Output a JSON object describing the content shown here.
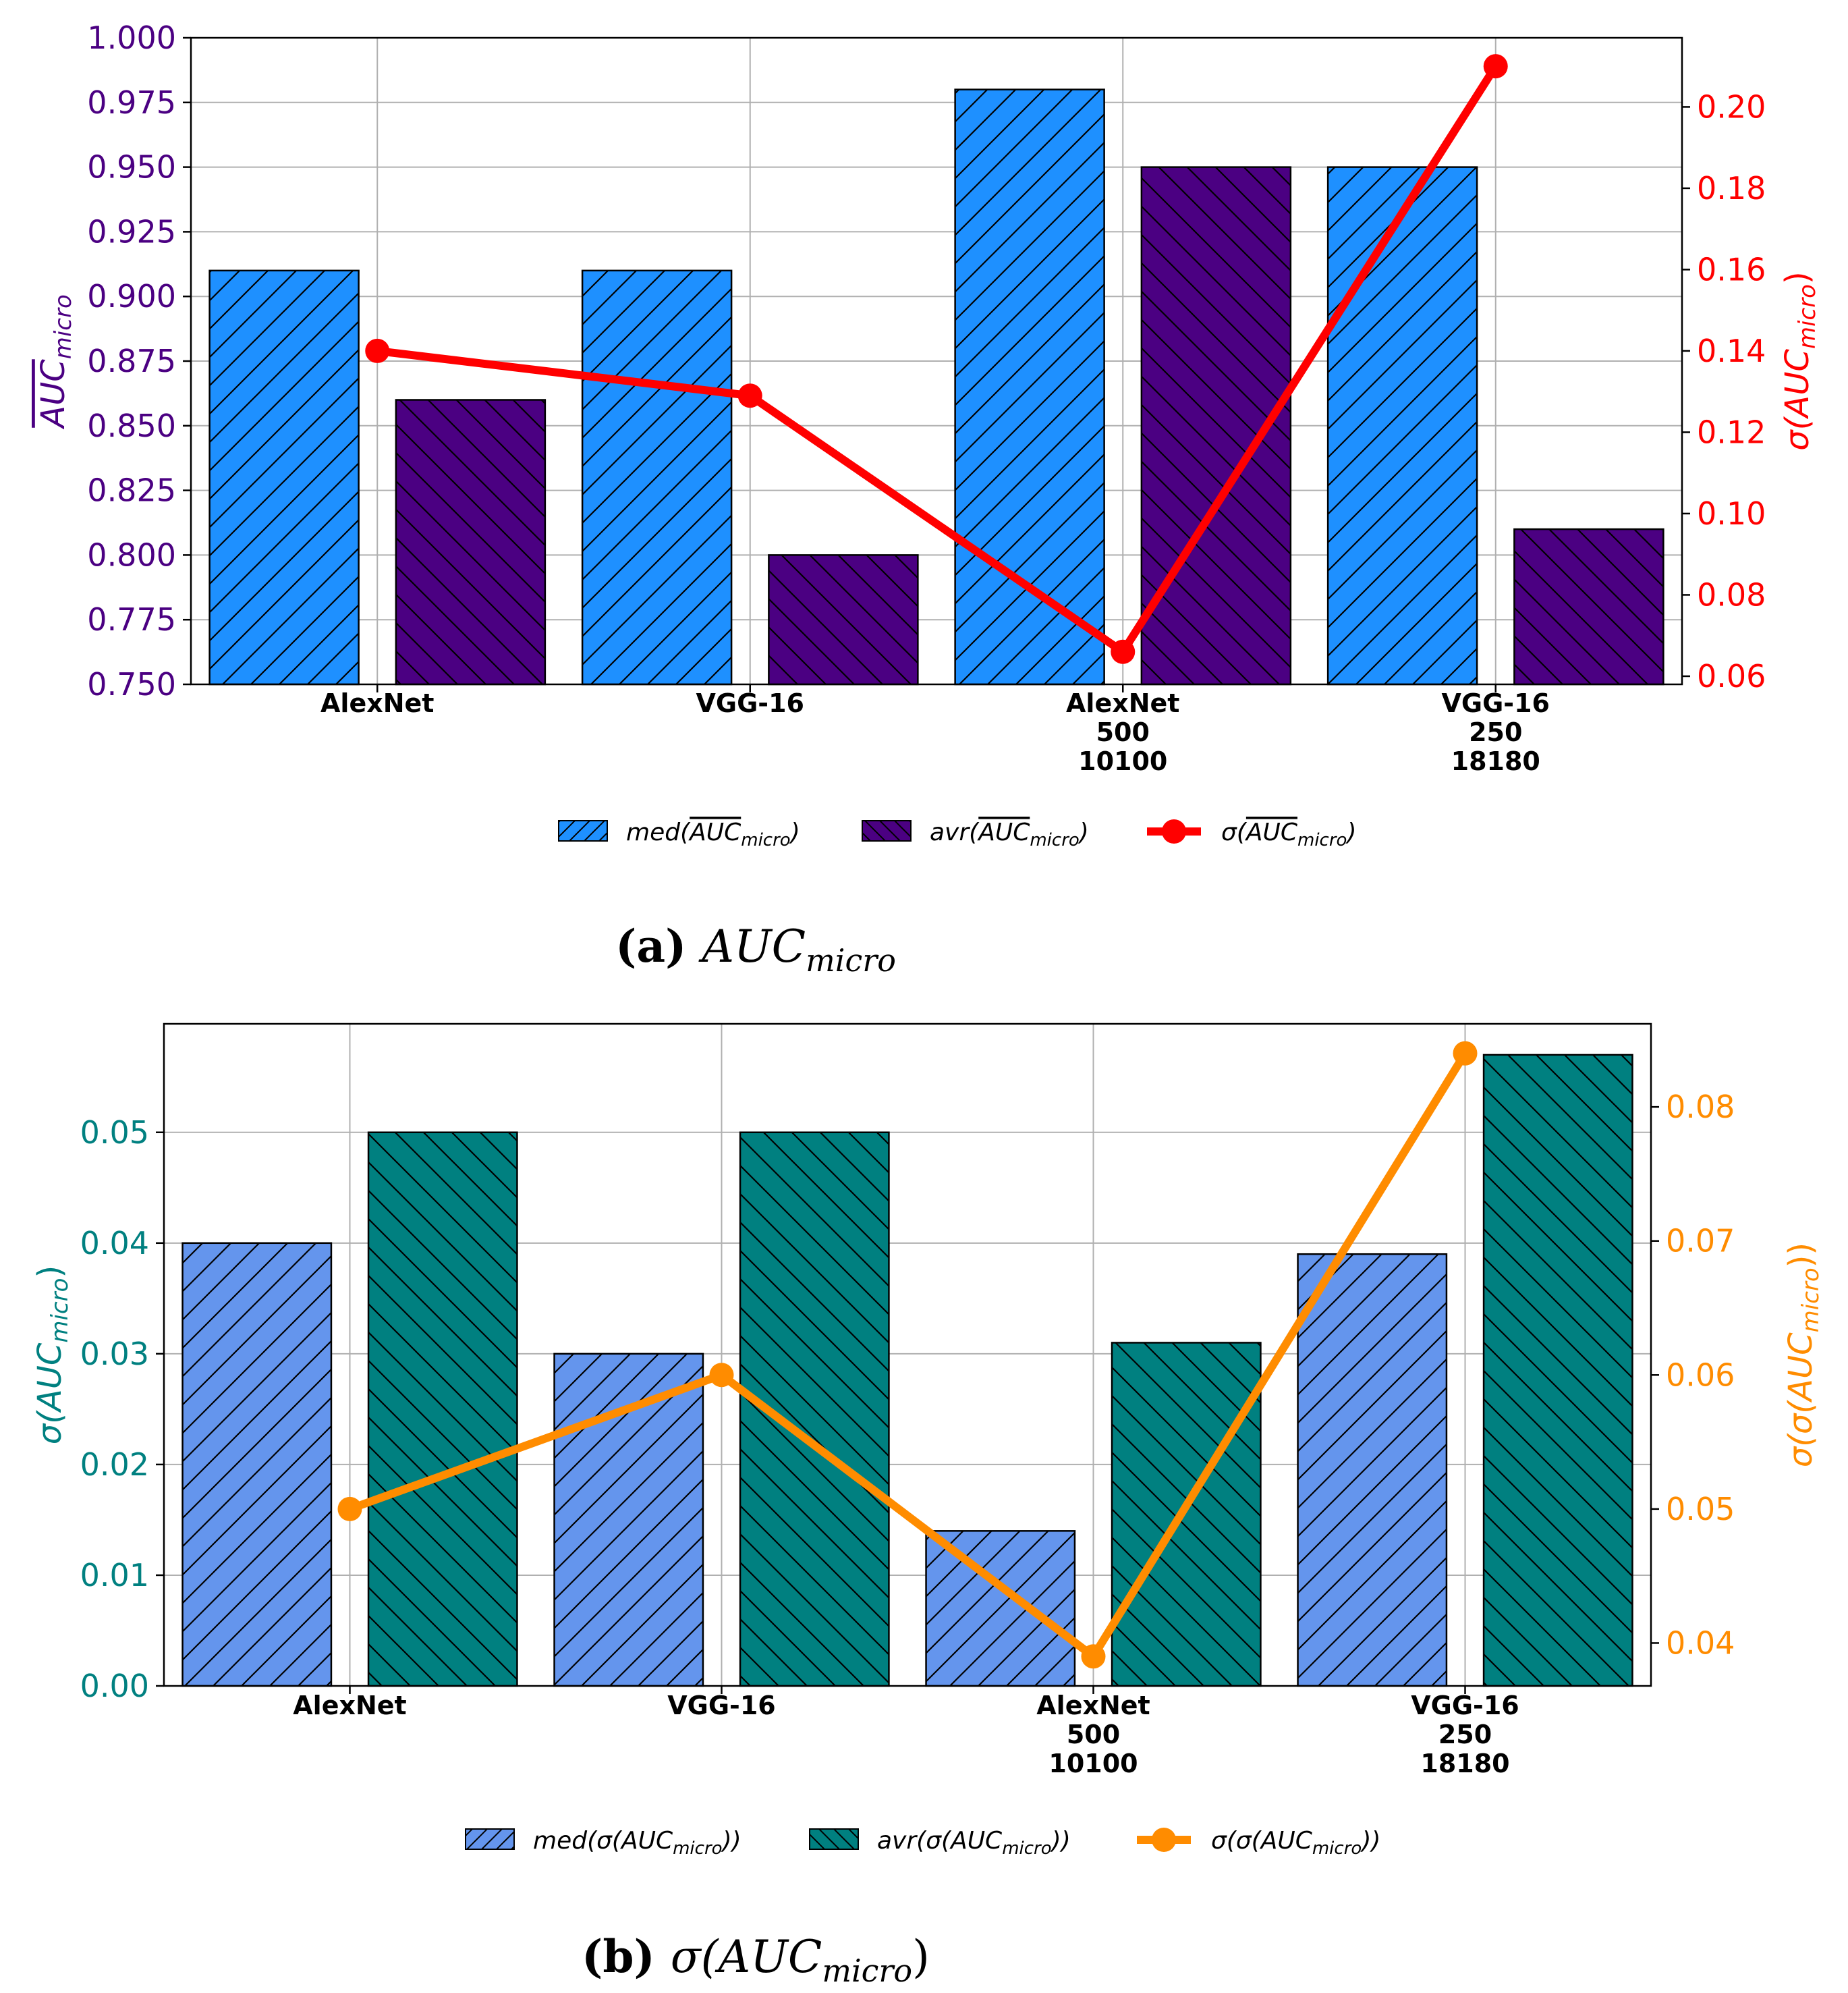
{
  "panels": [
    {
      "caption_letter": "(a)",
      "caption_text": "AUC",
      "caption_sub": "micro",
      "left_axis_label": "AUC",
      "left_axis_sub": "micro",
      "right_axis_label": "σ(AUC",
      "right_axis_sub": "micro",
      "right_axis_close": ")",
      "colors": {
        "bar1": "#1e90ff",
        "bar2": "#4b0082",
        "line": "#ff0000",
        "left_axis": "#4b0082",
        "right_axis": "#ff0000"
      },
      "legend": [
        {
          "pre": "med(",
          "main": "AUC",
          "sub": "micro",
          "post": ")"
        },
        {
          "pre": "avr(",
          "main": "AUC",
          "sub": "micro",
          "post": ")"
        },
        {
          "pre": "σ(",
          "main": "AUC",
          "sub": "micro",
          "post": ")"
        }
      ],
      "chart_data": {
        "type": "bar",
        "categories": [
          [
            "AlexNet"
          ],
          [
            "VGG-16"
          ],
          [
            "AlexNet",
            "500",
            "10100"
          ],
          [
            "VGG-16",
            "250",
            "18180"
          ]
        ],
        "series": [
          {
            "name": "med(AUC_micro)",
            "axis": "left",
            "values": [
              0.91,
              0.91,
              0.98,
              0.95
            ]
          },
          {
            "name": "avr(AUC_micro)",
            "axis": "left",
            "values": [
              0.86,
              0.8,
              0.95,
              0.81
            ]
          },
          {
            "name": "σ(AUC_micro)",
            "axis": "right",
            "kind": "line",
            "values": [
              0.14,
              0.129,
              0.066,
              0.21
            ]
          }
        ],
        "left_ylim": [
          0.75,
          1.0
        ],
        "left_ticks": [
          "0.750",
          "0.775",
          "0.800",
          "0.825",
          "0.850",
          "0.875",
          "0.900",
          "0.925",
          "0.950",
          "0.975",
          "1.000"
        ],
        "right_ylim": [
          0.058,
          0.217
        ],
        "right_ticks": [
          "0.06",
          "0.08",
          "0.10",
          "0.12",
          "0.14",
          "0.16",
          "0.18",
          "0.20"
        ],
        "grid": true,
        "legend_position": "bottom"
      }
    },
    {
      "caption_letter": "(b)",
      "caption_text": "σ(AUC",
      "caption_sub": "micro",
      "caption_close": ")",
      "left_axis_label": "σ(AUC",
      "left_axis_sub": "micro",
      "left_axis_close": ")",
      "right_axis_label": "σ(σ(AUC",
      "right_axis_sub": "micro",
      "right_axis_close": "))",
      "colors": {
        "bar1": "#6495ed",
        "bar2": "#008080",
        "line": "#ff8c00",
        "left_axis": "#008080",
        "right_axis": "#ff8c00"
      },
      "legend": [
        {
          "pre": "med(σ(",
          "main": "AUC",
          "sub": "micro",
          "post": "))"
        },
        {
          "pre": "avr(σ(",
          "main": "AUC",
          "sub": "micro",
          "post": "))"
        },
        {
          "pre": "σ(σ(",
          "main": "AUC",
          "sub": "micro",
          "post": "))"
        }
      ],
      "chart_data": {
        "type": "bar",
        "categories": [
          [
            "AlexNet"
          ],
          [
            "VGG-16"
          ],
          [
            "AlexNet",
            "500",
            "10100"
          ],
          [
            "VGG-16",
            "250",
            "18180"
          ]
        ],
        "series": [
          {
            "name": "med(σ(AUC_micro))",
            "axis": "left",
            "values": [
              0.04,
              0.03,
              0.014,
              0.039
            ]
          },
          {
            "name": "avr(σ(AUC_micro))",
            "axis": "left",
            "values": [
              0.05,
              0.05,
              0.031,
              0.057
            ]
          },
          {
            "name": "σ(σ(AUC_micro))",
            "axis": "right",
            "kind": "line",
            "values": [
              0.05,
              0.06,
              0.039,
              0.084
            ]
          }
        ],
        "left_ylim": [
          0.0,
          0.0598
        ],
        "left_ticks": [
          "0.00",
          "0.01",
          "0.02",
          "0.03",
          "0.04",
          "0.05"
        ],
        "right_ylim": [
          0.0368,
          0.0862
        ],
        "right_ticks": [
          "0.04",
          "0.05",
          "0.06",
          "0.07",
          "0.08"
        ],
        "grid": true,
        "legend_position": "bottom"
      }
    }
  ]
}
